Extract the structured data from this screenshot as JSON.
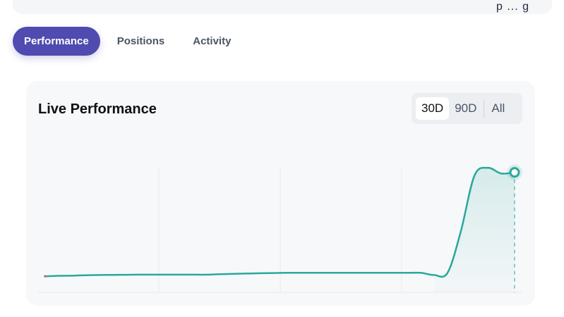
{
  "header": {
    "clipped_text": "p ... g"
  },
  "tabs": [
    {
      "label": "Performance",
      "active": true
    },
    {
      "label": "Positions",
      "active": false
    },
    {
      "label": "Activity",
      "active": false
    }
  ],
  "card": {
    "title": "Live Performance",
    "ranges": [
      "30D",
      "90D",
      "All"
    ],
    "selected_range": "30D"
  },
  "colors": {
    "accent": "#4f4bb0",
    "line": "#2aa89a",
    "fill": "#e3f3f1"
  },
  "chart_data": {
    "type": "area",
    "title": "",
    "xlabel": "",
    "ylabel": "",
    "grid": "vertical",
    "x": [
      0,
      1,
      2,
      3,
      4,
      5,
      6,
      7,
      8,
      9,
      10,
      11,
      12,
      13,
      14,
      15,
      16,
      17,
      18,
      19,
      20,
      21,
      22,
      23,
      24,
      25,
      26,
      27,
      28,
      29,
      30,
      31,
      32,
      33,
      34,
      35
    ],
    "values": [
      0.5,
      0.9,
      1.0,
      1.4,
      1.6,
      1.7,
      1.8,
      1.9,
      1.9,
      1.9,
      1.9,
      1.9,
      1.9,
      2.3,
      2.6,
      2.9,
      3.1,
      3.3,
      3.5,
      3.5,
      3.5,
      3.5,
      3.5,
      3.5,
      3.5,
      3.5,
      3.5,
      3.5,
      3.5,
      1.6,
      3.5,
      40,
      88,
      95,
      90,
      91
    ],
    "ylim": [
      0,
      100
    ]
  }
}
